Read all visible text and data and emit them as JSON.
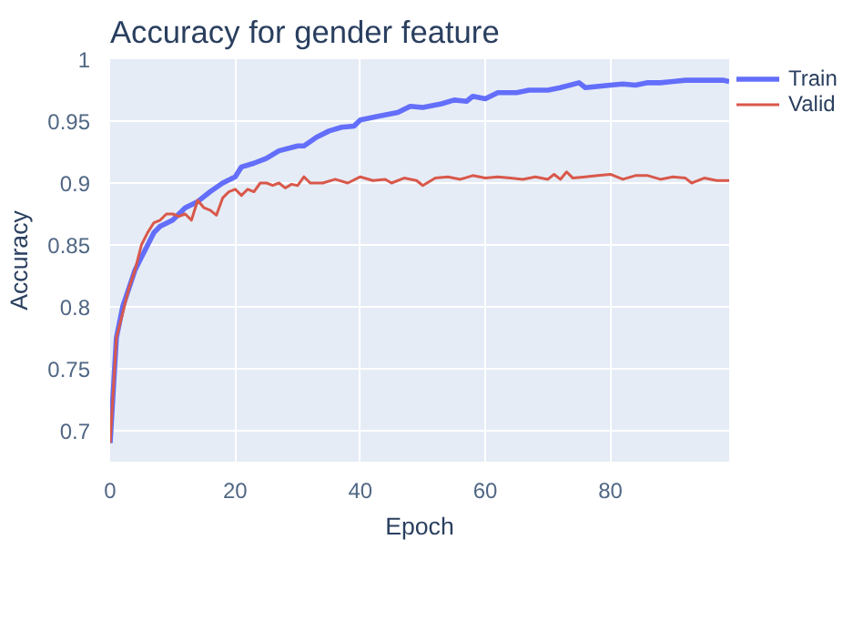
{
  "chart_data": {
    "type": "line",
    "title": "Accuracy for gender feature",
    "xlabel": "Epoch",
    "ylabel": "Accuracy",
    "xlim": [
      0,
      99
    ],
    "ylim": [
      0.675,
      1
    ],
    "xticks": [
      0,
      20,
      40,
      60,
      80
    ],
    "yticks": [
      0.7,
      0.75,
      0.8,
      0.85,
      0.9,
      0.95,
      1
    ],
    "grid": true,
    "legend": "top right",
    "line_style": "solid",
    "series": [
      {
        "name": "Train",
        "color": "#636efa",
        "x": [
          0,
          1,
          2,
          3,
          4,
          5,
          6,
          7,
          8,
          10,
          12,
          14,
          16,
          18,
          20,
          21,
          23,
          25,
          27,
          30,
          31,
          33,
          35,
          37,
          39,
          40,
          43,
          46,
          48,
          50,
          53,
          55,
          57,
          58,
          60,
          62,
          65,
          67,
          70,
          72,
          75,
          76,
          80,
          82,
          84,
          86,
          88,
          90,
          92,
          94,
          96,
          98,
          99
        ],
        "values": [
          0.69,
          0.775,
          0.8,
          0.815,
          0.83,
          0.84,
          0.85,
          0.86,
          0.865,
          0.87,
          0.88,
          0.885,
          0.893,
          0.9,
          0.905,
          0.913,
          0.916,
          0.92,
          0.926,
          0.93,
          0.93,
          0.937,
          0.942,
          0.945,
          0.946,
          0.951,
          0.954,
          0.957,
          0.962,
          0.961,
          0.964,
          0.967,
          0.966,
          0.97,
          0.968,
          0.973,
          0.973,
          0.975,
          0.975,
          0.977,
          0.981,
          0.977,
          0.979,
          0.98,
          0.979,
          0.981,
          0.981,
          0.982,
          0.983,
          0.983,
          0.983,
          0.983,
          0.982
        ]
      },
      {
        "name": "Valid",
        "color": "#d9584a",
        "x": [
          0,
          1,
          2,
          3,
          4,
          5,
          6,
          7,
          8,
          9,
          10,
          11,
          12,
          13,
          14,
          15,
          16,
          17,
          18,
          19,
          20,
          21,
          22,
          23,
          24,
          25,
          26,
          27,
          28,
          29,
          30,
          31,
          32,
          34,
          36,
          38,
          40,
          42,
          44,
          45,
          47,
          49,
          50,
          52,
          54,
          56,
          58,
          60,
          62,
          64,
          66,
          68,
          70,
          71,
          72,
          73,
          74,
          76,
          78,
          80,
          82,
          84,
          86,
          88,
          90,
          92,
          93,
          95,
          97,
          99
        ],
        "values": [
          0.69,
          0.775,
          0.795,
          0.815,
          0.83,
          0.85,
          0.86,
          0.868,
          0.87,
          0.875,
          0.875,
          0.873,
          0.875,
          0.87,
          0.886,
          0.88,
          0.878,
          0.874,
          0.888,
          0.893,
          0.895,
          0.89,
          0.895,
          0.893,
          0.9,
          0.9,
          0.898,
          0.9,
          0.896,
          0.899,
          0.898,
          0.905,
          0.9,
          0.9,
          0.903,
          0.9,
          0.905,
          0.902,
          0.903,
          0.9,
          0.904,
          0.902,
          0.898,
          0.904,
          0.905,
          0.903,
          0.906,
          0.904,
          0.905,
          0.904,
          0.903,
          0.905,
          0.903,
          0.907,
          0.903,
          0.909,
          0.904,
          0.905,
          0.906,
          0.907,
          0.903,
          0.906,
          0.906,
          0.903,
          0.905,
          0.904,
          0.9,
          0.904,
          0.902,
          0.902
        ]
      }
    ]
  }
}
